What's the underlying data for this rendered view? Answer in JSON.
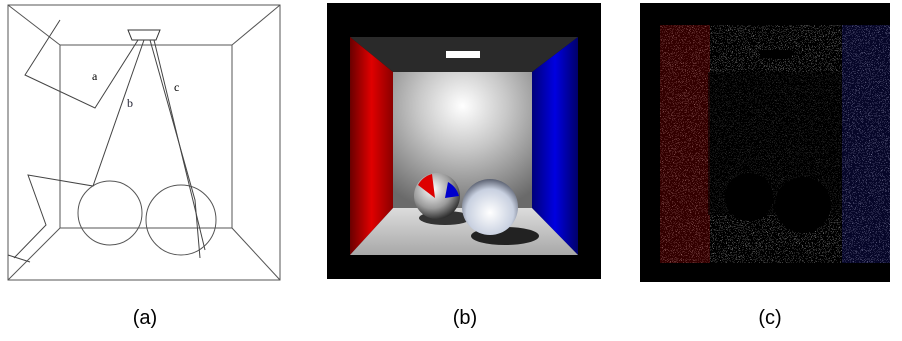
{
  "panel_a": {
    "ray_labels": [
      "a",
      "b",
      "c"
    ]
  },
  "captions": [
    "(a)",
    "(b)",
    "(c)"
  ]
}
